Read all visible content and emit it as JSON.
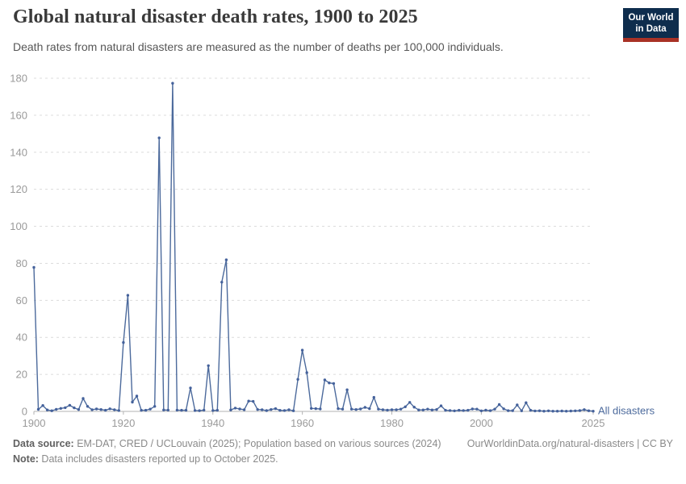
{
  "header": {
    "title": "Global natural disaster death rates, 1900 to 2025",
    "subtitle": "Death rates from natural disasters are measured as the number of deaths per 100,000 individuals.",
    "logo": {
      "line1": "Our World",
      "line2": "in Data",
      "bg_color": "#0E2D4D",
      "accent_color": "#A93226"
    }
  },
  "chart_data": {
    "type": "line",
    "title": "Global natural disaster death rates, 1900 to 2025",
    "series_label": "All disasters",
    "xlabel": "",
    "ylabel": "deaths per 100,000 individuals",
    "xlim": [
      1900,
      2025
    ],
    "ylim": [
      0,
      180
    ],
    "xticks": [
      1900,
      1920,
      1940,
      1960,
      1980,
      2000,
      2025
    ],
    "yticks": [
      0,
      20,
      40,
      60,
      80,
      100,
      120,
      140,
      160,
      180
    ],
    "grid": "horizontal-dashed",
    "legend_position": "end-of-line",
    "line_color": "#4C6A9C",
    "marker_color": "#44619B",
    "grid_color": "#dcdcdc",
    "axis_color": "#b3b3b3",
    "tick_label_color": "#9a9a9a",
    "years": [
      1900,
      1901,
      1902,
      1903,
      1904,
      1905,
      1906,
      1907,
      1908,
      1909,
      1910,
      1911,
      1912,
      1913,
      1914,
      1915,
      1916,
      1917,
      1918,
      1919,
      1920,
      1921,
      1922,
      1923,
      1924,
      1925,
      1926,
      1927,
      1928,
      1929,
      1930,
      1931,
      1932,
      1933,
      1934,
      1935,
      1936,
      1937,
      1938,
      1939,
      1940,
      1941,
      1942,
      1943,
      1944,
      1945,
      1946,
      1947,
      1948,
      1949,
      1950,
      1951,
      1952,
      1953,
      1954,
      1955,
      1956,
      1957,
      1958,
      1959,
      1960,
      1961,
      1962,
      1963,
      1964,
      1965,
      1966,
      1967,
      1968,
      1969,
      1970,
      1971,
      1972,
      1973,
      1974,
      1975,
      1976,
      1977,
      1978,
      1979,
      1980,
      1981,
      1982,
      1983,
      1984,
      1985,
      1986,
      1987,
      1988,
      1989,
      1990,
      1991,
      1992,
      1993,
      1994,
      1995,
      1996,
      1997,
      1998,
      1999,
      2000,
      2001,
      2002,
      2003,
      2004,
      2005,
      2006,
      2007,
      2008,
      2009,
      2010,
      2011,
      2012,
      2013,
      2014,
      2015,
      2016,
      2017,
      2018,
      2019,
      2020,
      2021,
      2022,
      2023,
      2024,
      2025
    ],
    "values": [
      77.8,
      1.1,
      3.2,
      0.8,
      0.35,
      1.1,
      1.6,
      2.0,
      3.3,
      1.9,
      1.0,
      7.0,
      2.7,
      0.9,
      1.3,
      1.0,
      0.6,
      1.4,
      0.9,
      0.5,
      37.2,
      62.7,
      5.0,
      8.3,
      0.6,
      0.6,
      1.2,
      2.7,
      147.8,
      0.8,
      0.7,
      177.3,
      0.7,
      0.6,
      0.6,
      12.7,
      0.5,
      0.4,
      0.7,
      24.7,
      0.5,
      0.6,
      69.8,
      81.9,
      0.8,
      1.8,
      1.3,
      0.9,
      5.6,
      5.4,
      1.0,
      0.9,
      0.45,
      1.0,
      1.5,
      0.55,
      0.5,
      0.85,
      0.35,
      17.3,
      33.1,
      20.9,
      1.6,
      1.5,
      1.3,
      17.0,
      15.4,
      15.1,
      1.5,
      1.2,
      11.7,
      1.2,
      1.0,
      1.3,
      2.2,
      1.5,
      7.6,
      1.2,
      0.9,
      0.7,
      0.9,
      0.9,
      1.2,
      2.5,
      4.9,
      2.3,
      0.8,
      0.8,
      1.2,
      0.8,
      1.0,
      3.0,
      0.6,
      0.5,
      0.3,
      0.6,
      0.5,
      0.6,
      1.3,
      1.2,
      0.3,
      0.7,
      0.4,
      1.2,
      3.7,
      1.4,
      0.4,
      0.4,
      3.5,
      0.3,
      4.7,
      0.6,
      0.25,
      0.35,
      0.15,
      0.3,
      0.15,
      0.15,
      0.2,
      0.15,
      0.2,
      0.3,
      0.45,
      0.95,
      0.35,
      0.15
    ]
  },
  "footer": {
    "data_source_label": "Data source:",
    "data_source_text": " EM-DAT, CRED / UCLouvain (2025); Population based on various sources (2024)",
    "attribution": "OurWorldinData.org/natural-disasters | CC BY",
    "note_label": "Note:",
    "note_text": " Data includes disasters reported up to October 2025."
  }
}
